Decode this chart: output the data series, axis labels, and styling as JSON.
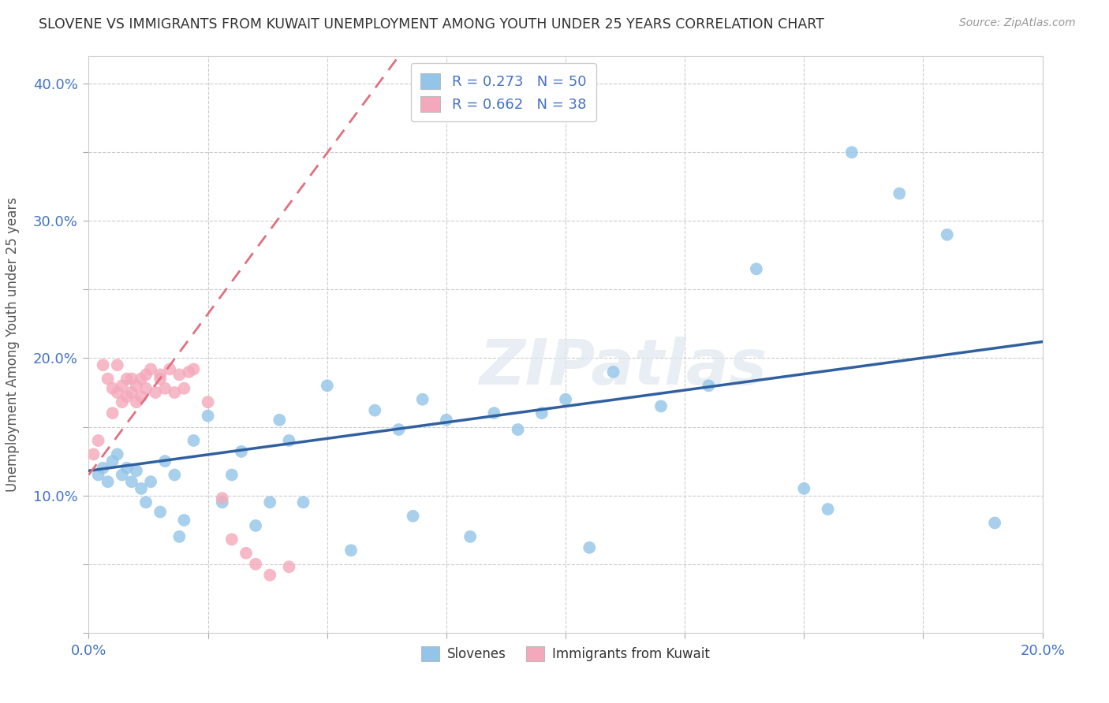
{
  "title": "SLOVENE VS IMMIGRANTS FROM KUWAIT UNEMPLOYMENT AMONG YOUTH UNDER 25 YEARS CORRELATION CHART",
  "source": "Source: ZipAtlas.com",
  "ylabel": "Unemployment Among Youth under 25 years",
  "xlim": [
    0.0,
    0.2
  ],
  "ylim": [
    0.0,
    0.42
  ],
  "watermark": "ZIPatlas",
  "background_color": "#ffffff",
  "grid_color": "#cccccc",
  "blue_color": "#92c5e8",
  "pink_color": "#f4a8bb",
  "blue_line_color": "#3060a0",
  "pink_line_color": "#e07080",
  "legend_blue_label": "R = 0.273   N = 50",
  "legend_pink_label": "R = 0.662   N = 38",
  "legend_slovenes": "Slovenes",
  "legend_kuwait": "Immigrants from Kuwait",
  "blue_scatter_x": [
    0.002,
    0.003,
    0.004,
    0.005,
    0.006,
    0.007,
    0.008,
    0.009,
    0.01,
    0.011,
    0.012,
    0.013,
    0.015,
    0.016,
    0.018,
    0.019,
    0.02,
    0.022,
    0.025,
    0.028,
    0.03,
    0.032,
    0.035,
    0.038,
    0.04,
    0.042,
    0.045,
    0.05,
    0.055,
    0.06,
    0.065,
    0.068,
    0.07,
    0.075,
    0.08,
    0.085,
    0.09,
    0.095,
    0.1,
    0.105,
    0.11,
    0.12,
    0.13,
    0.14,
    0.15,
    0.155,
    0.16,
    0.17,
    0.18,
    0.19
  ],
  "blue_scatter_y": [
    0.115,
    0.12,
    0.11,
    0.125,
    0.13,
    0.115,
    0.12,
    0.11,
    0.118,
    0.105,
    0.095,
    0.11,
    0.088,
    0.125,
    0.115,
    0.07,
    0.082,
    0.14,
    0.158,
    0.095,
    0.115,
    0.132,
    0.078,
    0.095,
    0.155,
    0.14,
    0.095,
    0.18,
    0.06,
    0.162,
    0.148,
    0.085,
    0.17,
    0.155,
    0.07,
    0.16,
    0.148,
    0.16,
    0.17,
    0.062,
    0.19,
    0.165,
    0.18,
    0.265,
    0.105,
    0.09,
    0.35,
    0.32,
    0.29,
    0.08
  ],
  "pink_scatter_x": [
    0.001,
    0.002,
    0.003,
    0.004,
    0.005,
    0.005,
    0.006,
    0.006,
    0.007,
    0.007,
    0.008,
    0.008,
    0.009,
    0.009,
    0.01,
    0.01,
    0.011,
    0.011,
    0.012,
    0.012,
    0.013,
    0.014,
    0.015,
    0.015,
    0.016,
    0.017,
    0.018,
    0.019,
    0.02,
    0.021,
    0.022,
    0.025,
    0.028,
    0.03,
    0.033,
    0.035,
    0.038,
    0.042
  ],
  "pink_scatter_y": [
    0.13,
    0.14,
    0.195,
    0.185,
    0.178,
    0.16,
    0.175,
    0.195,
    0.168,
    0.18,
    0.172,
    0.185,
    0.175,
    0.185,
    0.168,
    0.18,
    0.172,
    0.185,
    0.178,
    0.188,
    0.192,
    0.175,
    0.185,
    0.188,
    0.178,
    0.192,
    0.175,
    0.188,
    0.178,
    0.19,
    0.192,
    0.168,
    0.098,
    0.068,
    0.058,
    0.05,
    0.042,
    0.048
  ],
  "blue_trend_x": [
    0.0,
    0.2
  ],
  "blue_trend_y": [
    0.118,
    0.212
  ],
  "pink_trend_x": [
    0.0,
    0.065
  ],
  "pink_trend_y": [
    0.115,
    0.42
  ]
}
